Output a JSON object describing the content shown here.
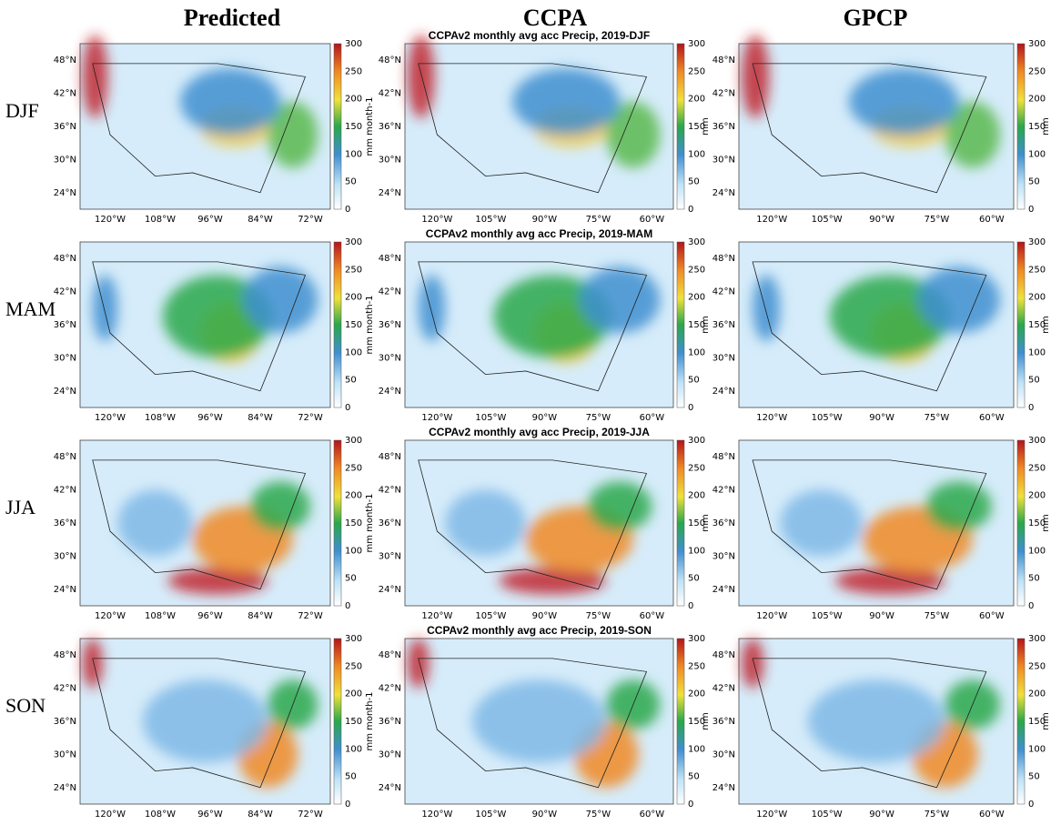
{
  "columns": [
    "Predicted",
    "CCPA",
    "GPCP"
  ],
  "rows": [
    "DJF",
    "MAM",
    "JJA",
    "SON"
  ],
  "predicted": {
    "lon_ticks": [
      "120°W",
      "108°W",
      "96°W",
      "84°W",
      "72°W"
    ],
    "lat_ticks": [
      "48°N",
      "42°N",
      "36°N",
      "30°N",
      "24°N"
    ],
    "colorbar_ticks": [
      "300",
      "250",
      "200",
      "150",
      "100",
      "50",
      "0"
    ]
  },
  "ccpa": {
    "titles": [
      "CCPAv2 monthly avg acc Precip, 2019-DJF",
      "CCPAv2 monthly avg acc Precip, 2019-MAM",
      "CCPAv2 monthly avg acc Precip, 2019-JJA",
      "CCPAv2 monthly avg acc Precip, 2019-SON"
    ],
    "y_label": "mm month-1",
    "colorbar_label": "mm",
    "lon_ticks": [
      "120°W",
      "105°W",
      "90°W",
      "75°W",
      "60°W"
    ],
    "lat_ticks": [
      "48°N",
      "42°N",
      "36°N",
      "30°N",
      "24°N"
    ],
    "colorbar_ticks": [
      "300",
      "250",
      "200",
      "150",
      "100",
      "50",
      "0"
    ]
  },
  "gpcp": {
    "colorbar_label": "mm",
    "lon_ticks": [
      "120°W",
      "105°W",
      "90°W",
      "75°W",
      "60°W"
    ],
    "lat_ticks": [
      "48°N",
      "42°N",
      "36°N",
      "30°N",
      "24°N"
    ],
    "colorbar_ticks": [
      "300",
      "250",
      "200",
      "150",
      "100",
      "50",
      "0"
    ]
  }
}
